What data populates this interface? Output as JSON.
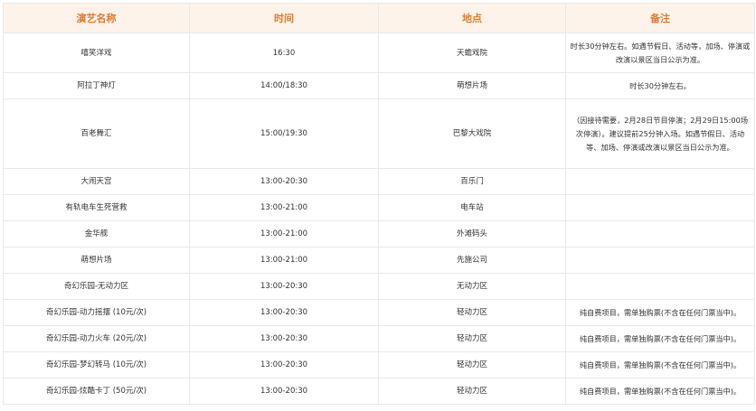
{
  "table": {
    "headers": [
      "演艺名称",
      "时间",
      "地点",
      "备注"
    ],
    "rows": [
      {
        "name": "嘻笑洋戏",
        "time": "16:30",
        "place": "天蟾戏院",
        "note": "时长30分钟左右。如遇节假日、活动等，加场、停演或改演以景区当日公示为准。"
      },
      {
        "name": "阿拉丁神灯",
        "time": "14:00/18:30",
        "place": "萌想片场",
        "note": "时长30分钟左右。"
      },
      {
        "name": "百老舞汇",
        "time": "15:00/19:30",
        "place": "巴黎大戏院",
        "note": "（因接待需要，2月28日节目停演；2月29日15:00场次停演）。建议提前25分钟入场。如遇节假日、活动等、加场、停演或改演以景区当日公示为准。"
      },
      {
        "name": "大闹天宫",
        "time": "13:00-20:30",
        "place": "百乐门",
        "note": ""
      },
      {
        "name": "有轨电车生死营救",
        "time": "13:00-21:00",
        "place": "电车站",
        "note": ""
      },
      {
        "name": "金华舰",
        "time": "13:00-21:00",
        "place": "外滩码头",
        "note": ""
      },
      {
        "name": "萌想片场",
        "time": "13:00-21:00",
        "place": "先施公司",
        "note": ""
      },
      {
        "name": "奇幻乐园-无动力区",
        "time": "13:00-20:30",
        "place": "无动力区",
        "note": ""
      },
      {
        "name": "奇幻乐园-动力摇摆 (10元/次)",
        "time": "13:00-20:30",
        "place": "轻动力区",
        "note": "纯自费项目，需单独购票(不含在任何门票当中)。"
      },
      {
        "name": "奇幻乐园-动力火车 (20元/次)",
        "time": "13:00-20:30",
        "place": "轻动力区",
        "note": "纯自费项目，需单独购票(不含在任何门票当中)。"
      },
      {
        "name": "奇幻乐园-梦幻转马 (10元/次)",
        "time": "13:00-20:30",
        "place": "轻动力区",
        "note": "纯自费项目，需单独购票(不含在任何门票当中)。"
      },
      {
        "name": "奇幻乐园-炫酷卡丁 (50元/次)",
        "time": "13:00-20:30",
        "place": "轻动力区",
        "note": "纯自费项目，需单独购票(不含在任何门票当中)。"
      }
    ]
  },
  "colors": {
    "header_bg": "#fdf3ea",
    "header_text": "#e07a2e",
    "border": "#e8e8e8",
    "text": "#333333"
  }
}
